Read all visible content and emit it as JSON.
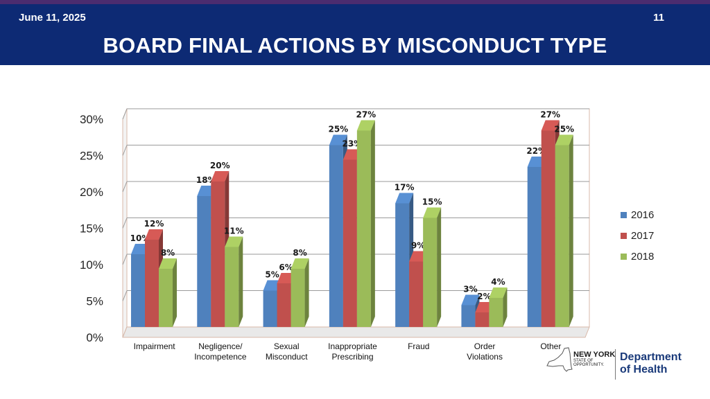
{
  "header": {
    "date": "June 11, 2025",
    "page_number": "11",
    "title": "BOARD FINAL ACTIONS BY MISCONDUCT TYPE"
  },
  "colors": {
    "header_bg": "#0d2a74",
    "top_strip": "#4b2c6f",
    "series_2016": "#4f81bd",
    "series_2017": "#c0504d",
    "series_2018": "#9bbb59"
  },
  "logo": {
    "state_line1": "NEW YORK",
    "state_line2": "STATE OF",
    "state_line3": "OPPORTUNITY.",
    "dept_line1": "Department",
    "dept_line2": "of Health"
  },
  "chart_data": {
    "type": "bar",
    "title": "",
    "xlabel": "",
    "ylabel": "",
    "ylim": [
      0,
      30
    ],
    "y_ticks": [
      "0%",
      "5%",
      "10%",
      "15%",
      "20%",
      "25%",
      "30%"
    ],
    "grid": true,
    "legend_position": "right",
    "categories": [
      [
        "Impairment"
      ],
      [
        "Negligence/",
        "Incompetence"
      ],
      [
        "Sexual",
        "Misconduct"
      ],
      [
        "Inappropriate",
        "Prescribing"
      ],
      [
        "Fraud"
      ],
      [
        "Order",
        "Violations"
      ],
      [
        "Other"
      ]
    ],
    "series": [
      {
        "name": "2016",
        "color": "#4f81bd",
        "values": [
          10,
          18,
          5,
          25,
          17,
          3,
          22
        ],
        "labels": [
          "10%",
          "18%",
          "5%",
          "25%",
          "17%",
          "3%",
          "22%"
        ]
      },
      {
        "name": "2017",
        "color": "#c0504d",
        "values": [
          12,
          20,
          6,
          23,
          9,
          2,
          27
        ],
        "labels": [
          "12%",
          "20%",
          "6%",
          "23%",
          "9%",
          "2%",
          "27%"
        ]
      },
      {
        "name": "2018",
        "color": "#9bbb59",
        "values": [
          8,
          11,
          8,
          27,
          15,
          4,
          25
        ],
        "labels": [
          "8%",
          "11%",
          "8%",
          "27%",
          "15%",
          "4%",
          "25%"
        ]
      }
    ]
  }
}
